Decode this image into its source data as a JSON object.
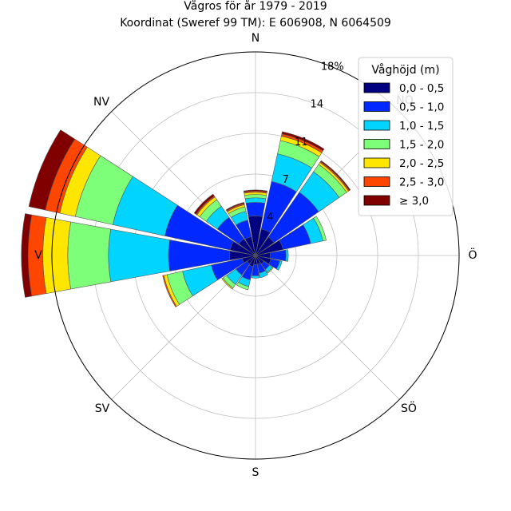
{
  "chart_data": {
    "type": "windrose",
    "title": "Vågros för år 1979 - 2019",
    "subtitle": "Koordinat (Sweref 99 TM): E 606908, N 6064509",
    "directions": [
      "N",
      "NO",
      "Ö",
      "SÖ",
      "S",
      "SV",
      "V",
      "NV"
    ],
    "radial_ticks": [
      "4",
      "7",
      "11",
      "14",
      "18%"
    ],
    "radial_tick_values": [
      3.6,
      7.2,
      10.8,
      14.4,
      18.0
    ],
    "rmax": 18.0,
    "grid": true,
    "legend_position": "top-right",
    "legend": {
      "title": "Våghöjd (m)",
      "bins": [
        {
          "label": "0,0 - 0,5",
          "color": "#000080"
        },
        {
          "label": "0,5 - 1,0",
          "color": "#0028ff"
        },
        {
          "label": "1,0 - 1,5",
          "color": "#00d4ff"
        },
        {
          "label": "1,5 - 2,0",
          "color": "#7dff7a"
        },
        {
          "label": "2,0 - 2,5",
          "color": "#ffe600"
        },
        {
          "label": "2,5 - 3,0",
          "color": "#ff4600"
        },
        {
          "label": "≥ 3,0",
          "color": "#800000"
        }
      ]
    },
    "sectors": [
      {
        "dir_deg": 0,
        "values": [
          3.5,
          1.2,
          0.4,
          0.3,
          0.2,
          0.1,
          0.1
        ]
      },
      {
        "dir_deg": 22.5,
        "values": [
          2.4,
          4.3,
          2.5,
          1.2,
          0.4,
          0.2,
          0.2
        ]
      },
      {
        "dir_deg": 45,
        "values": [
          2.0,
          4.8,
          2.2,
          0.8,
          0.2,
          0.1,
          0.1
        ]
      },
      {
        "dir_deg": 67.5,
        "values": [
          2.5,
          2.5,
          1.1,
          0.3,
          0.0,
          0.0,
          0.0
        ]
      },
      {
        "dir_deg": 90,
        "values": [
          1.3,
          1.4,
          0.2,
          0.0,
          0.0,
          0.0,
          0.0
        ]
      },
      {
        "dir_deg": 112.5,
        "values": [
          1.4,
          0.8,
          0.2,
          0.0,
          0.0,
          0.0,
          0.0
        ]
      },
      {
        "dir_deg": 135,
        "values": [
          0.9,
          0.6,
          0.3,
          0.1,
          0.0,
          0.0,
          0.0
        ]
      },
      {
        "dir_deg": 157.5,
        "values": [
          0.8,
          0.8,
          0.4,
          0.0,
          0.0,
          0.0,
          0.0
        ]
      },
      {
        "dir_deg": 180,
        "values": [
          0.8,
          1.0,
          0.2,
          0.0,
          0.0,
          0.0,
          0.0
        ]
      },
      {
        "dir_deg": 202.5,
        "values": [
          1.0,
          1.2,
          0.6,
          0.3,
          0.0,
          0.0,
          0.0
        ]
      },
      {
        "dir_deg": 225,
        "values": [
          0.9,
          1.2,
          1.0,
          0.4,
          0.1,
          0.0,
          0.0
        ]
      },
      {
        "dir_deg": 247.5,
        "values": [
          1.2,
          2.8,
          2.6,
          1.4,
          0.3,
          0.1,
          0.0
        ]
      },
      {
        "dir_deg": 270,
        "values": [
          2.3,
          5.4,
          5.3,
          3.6,
          2.2,
          1.3,
          0.6
        ]
      },
      {
        "dir_deg": 292.5,
        "values": [
          2.3,
          5.9,
          4.7,
          3.4,
          1.4,
          1.3,
          1.5
        ]
      },
      {
        "dir_deg": 315,
        "values": [
          1.8,
          2.3,
          1.2,
          0.7,
          0.3,
          0.1,
          0.2
        ]
      },
      {
        "dir_deg": 337.5,
        "values": [
          1.7,
          1.5,
          0.8,
          0.4,
          0.2,
          0.1,
          0.1
        ]
      }
    ]
  }
}
